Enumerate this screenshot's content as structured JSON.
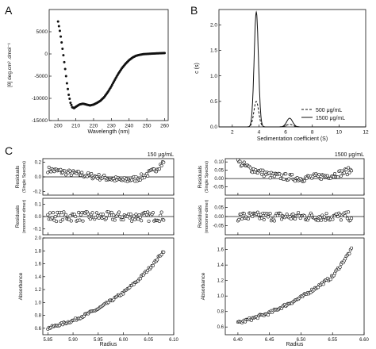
{
  "panels": {
    "A": {
      "letter": "A"
    },
    "B": {
      "letter": "B"
    },
    "C": {
      "letter": "C"
    }
  },
  "chart_data": [
    {
      "id": "A",
      "type": "scatter",
      "xlabel": "Wavelength (nm)",
      "ylabel": "[θ] deg.cm² .dmol⁻¹",
      "xlim": [
        195,
        262
      ],
      "ylim": [
        -15000,
        10000
      ],
      "xticks": [
        200,
        210,
        220,
        230,
        240,
        250,
        260
      ],
      "yticks": [
        -15000,
        -10000,
        -5000,
        0,
        5000
      ],
      "curve_knots": [
        [
          200,
          7300
        ],
        [
          201,
          5200
        ],
        [
          202,
          2600
        ],
        [
          203,
          -300
        ],
        [
          204,
          -3400
        ],
        [
          205,
          -6600
        ],
        [
          206,
          -9200
        ],
        [
          207,
          -11000
        ],
        [
          208,
          -12000
        ],
        [
          209,
          -12200
        ],
        [
          210,
          -11900
        ],
        [
          212,
          -11400
        ],
        [
          214,
          -11200
        ],
        [
          216,
          -11400
        ],
        [
          218,
          -11600
        ],
        [
          220,
          -11400
        ],
        [
          222,
          -11000
        ],
        [
          224,
          -10500
        ],
        [
          226,
          -9700
        ],
        [
          228,
          -8600
        ],
        [
          230,
          -7300
        ],
        [
          232,
          -5800
        ],
        [
          234,
          -4400
        ],
        [
          236,
          -3200
        ],
        [
          238,
          -2200
        ],
        [
          240,
          -1400
        ],
        [
          242,
          -800
        ],
        [
          244,
          -400
        ],
        [
          246,
          -200
        ],
        [
          248,
          -50
        ],
        [
          250,
          0
        ],
        [
          254,
          100
        ],
        [
          257,
          150
        ],
        [
          260,
          200
        ]
      ]
    },
    {
      "id": "B",
      "type": "line",
      "xlabel": "Sedimentation coefficient (S)",
      "ylabel": "c (s)",
      "xlim": [
        1,
        12
      ],
      "ylim": [
        0,
        2.3
      ],
      "xticks": [
        2,
        4,
        6,
        8,
        10,
        12
      ],
      "yticks": [
        0,
        0.5,
        1.0,
        1.5,
        2.0
      ],
      "series": [
        {
          "name": "500 μg/mL",
          "style": "dashed",
          "peaks": [
            [
              3.8,
              0.5,
              0.18
            ],
            [
              6.3,
              0.05,
              0.25
            ]
          ]
        },
        {
          "name": "1500 μg/mL",
          "style": "solid",
          "peaks": [
            [
              3.8,
              2.25,
              0.16
            ],
            [
              6.3,
              0.17,
              0.22
            ]
          ]
        }
      ]
    },
    {
      "id": "C-left",
      "type": "scatter",
      "concentration": "150 μg/mL",
      "xlabel": "Radius",
      "xlim": [
        5.84,
        6.1
      ],
      "xticks": [
        5.85,
        5.9,
        5.95,
        6.0,
        6.05,
        6.1
      ],
      "residuals_single": {
        "ylabel": "Residuals",
        "sublabel": "(Single Species)",
        "ylim": [
          -0.25,
          0.25
        ],
        "yticks": [
          -0.2,
          0.0,
          0.2
        ],
        "trend": [
          [
            5.85,
            0.1
          ],
          [
            5.9,
            0.05
          ],
          [
            5.95,
            0.0
          ],
          [
            6.0,
            -0.05
          ],
          [
            6.03,
            -0.02
          ],
          [
            6.06,
            0.08
          ],
          [
            6.08,
            0.2
          ]
        ],
        "noise": 0.04
      },
      "residuals_dimer": {
        "ylabel": "Residuals",
        "sublabel": "(monomer-dimer)",
        "ylim": [
          -0.15,
          0.15
        ],
        "yticks": [
          -0.1,
          0.0,
          0.1
        ],
        "trend": [
          [
            5.85,
            0.0
          ],
          [
            6.08,
            0.0
          ]
        ],
        "noise": 0.04
      },
      "absorbance": {
        "ylabel": "Absorbance",
        "ylim": [
          0.5,
          2.0
        ],
        "yticks": [
          0.6,
          0.8,
          1.0,
          1.2,
          1.4,
          1.6,
          1.8,
          2.0
        ],
        "trend": [
          [
            5.85,
            0.6
          ],
          [
            5.9,
            0.72
          ],
          [
            5.95,
            0.9
          ],
          [
            6.0,
            1.15
          ],
          [
            6.03,
            1.35
          ],
          [
            6.06,
            1.6
          ],
          [
            6.08,
            1.8
          ]
        ],
        "noise": 0.02
      }
    },
    {
      "id": "C-right",
      "type": "scatter",
      "concentration": "1500 μg/mL",
      "xlabel": "Radius",
      "xlim": [
        6.38,
        6.6
      ],
      "xticks": [
        6.4,
        6.45,
        6.5,
        6.55,
        6.6
      ],
      "residuals_single": {
        "ylabel": "Residuals",
        "sublabel": "(Single Species)",
        "ylim": [
          -0.1,
          0.12
        ],
        "yticks": [
          -0.05,
          0.0,
          0.05,
          0.1
        ],
        "trend": [
          [
            6.4,
            0.1
          ],
          [
            6.42,
            0.06
          ],
          [
            6.45,
            0.02
          ],
          [
            6.5,
            0.0
          ],
          [
            6.55,
            0.02
          ],
          [
            6.58,
            0.05
          ]
        ],
        "noise": 0.02
      },
      "residuals_dimer": {
        "ylabel": "Residuals",
        "sublabel": "(monomer-dimer)",
        "ylim": [
          -0.1,
          0.1
        ],
        "yticks": [
          -0.05,
          0.0,
          0.05
        ],
        "trend": [
          [
            6.4,
            0.0
          ],
          [
            6.58,
            0.0
          ]
        ],
        "noise": 0.025
      },
      "absorbance": {
        "ylabel": "Absorbance",
        "ylim": [
          0.5,
          1.75
        ],
        "yticks": [
          0.6,
          0.8,
          1.0,
          1.2,
          1.4,
          1.6
        ],
        "trend": [
          [
            6.4,
            0.65
          ],
          [
            6.45,
            0.78
          ],
          [
            6.5,
            0.98
          ],
          [
            6.55,
            1.25
          ],
          [
            6.58,
            1.6
          ]
        ],
        "noise": 0.02
      }
    }
  ]
}
